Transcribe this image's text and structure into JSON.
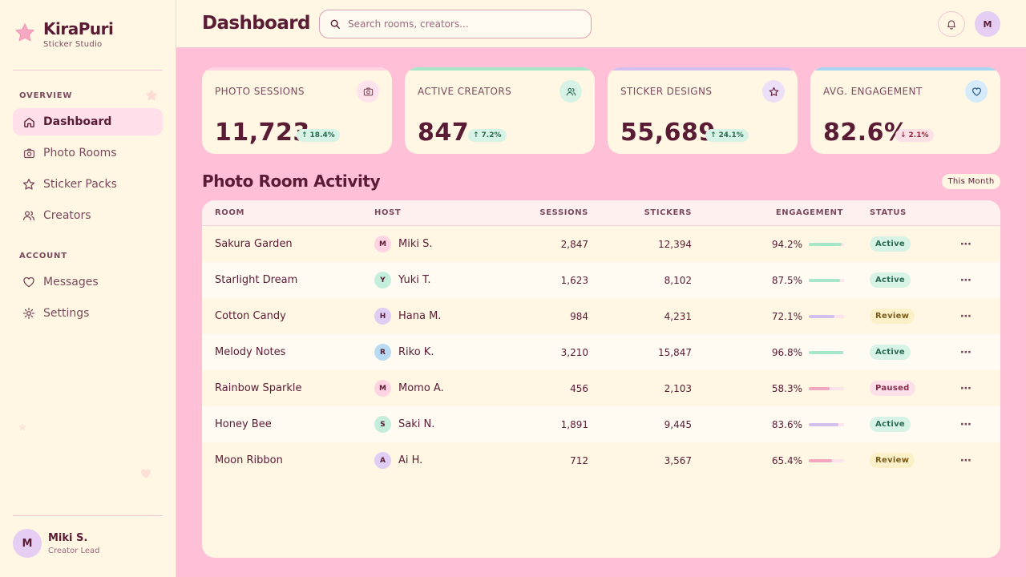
{
  "brand": {
    "name": "KiraPuri",
    "subtitle": "Sticker Studio"
  },
  "sidebar": {
    "sections": [
      "OVERVIEW",
      "ACCOUNT"
    ],
    "items": [
      {
        "label": "Dashboard",
        "icon": "home-icon",
        "active": true
      },
      {
        "label": "Photo Rooms",
        "icon": "camera-icon"
      },
      {
        "label": "Sticker Packs",
        "icon": "star-icon"
      },
      {
        "label": "Creators",
        "icon": "users-icon"
      },
      {
        "label": "Messages",
        "icon": "heart-icon"
      },
      {
        "label": "Settings",
        "icon": "gear-icon"
      }
    ],
    "profile": {
      "initial": "M",
      "name": "Miki S.",
      "role": "Creator Lead"
    }
  },
  "header": {
    "title": "Dashboard",
    "search_placeholder": "Search rooms, creators...",
    "avatar_initial": "M"
  },
  "stats": [
    {
      "label": "PHOTO SESSIONS",
      "value": "11,723",
      "delta": "18.4%",
      "direction": "up",
      "icon": "camera-icon",
      "accent": "#ffd3e2",
      "icon_bg": "#ffe3ec"
    },
    {
      "label": "ACTIVE CREATORS",
      "value": "847",
      "delta": "7.2%",
      "direction": "up",
      "icon": "users-icon",
      "accent": "#a8e6c9",
      "icon_bg": "#d7f3e6"
    },
    {
      "label": "STICKER DESIGNS",
      "value": "55,689",
      "delta": "24.1%",
      "direction": "up",
      "icon": "star-icon",
      "accent": "#d3c0ef",
      "icon_bg": "#ece0f8"
    },
    {
      "label": "AVG. ENGAGEMENT",
      "value": "82.6%",
      "delta": "2.1%",
      "direction": "down",
      "icon": "heart-icon",
      "accent": "#a9d4f2",
      "icon_bg": "#d6ebfa"
    }
  ],
  "activity": {
    "title": "Photo Room Activity",
    "filter": "This Month",
    "columns": [
      "ROOM",
      "HOST",
      "SESSIONS",
      "STICKERS",
      "ENGAGEMENT",
      "STATUS"
    ],
    "rows": [
      {
        "room": "Sakura Garden",
        "host_initial": "M",
        "host": "Miki S.",
        "host_color": "#ffd3e2",
        "sessions": "2,847",
        "stickers": "12,394",
        "engagement": "94.2%",
        "engagement_value": 0.942,
        "bar_color": "#a8e6c9",
        "status": "Active"
      },
      {
        "room": "Starlight Dream",
        "host_initial": "Y",
        "host": "Yuki T.",
        "host_color": "#c4eedb",
        "sessions": "1,623",
        "stickers": "8,102",
        "engagement": "87.5%",
        "engagement_value": 0.875,
        "bar_color": "#a8e6c9",
        "status": "Active"
      },
      {
        "room": "Cotton Candy",
        "host_initial": "H",
        "host": "Hana M.",
        "host_color": "#e0cdf3",
        "sessions": "984",
        "stickers": "4,231",
        "engagement": "72.1%",
        "engagement_value": 0.721,
        "bar_color": "#d3c0ef",
        "status": "Review"
      },
      {
        "room": "Melody Notes",
        "host_initial": "R",
        "host": "Riko K.",
        "host_color": "#b9daf3",
        "sessions": "3,210",
        "stickers": "15,847",
        "engagement": "96.8%",
        "engagement_value": 0.968,
        "bar_color": "#a8e6c9",
        "status": "Active"
      },
      {
        "room": "Rainbow Sparkle",
        "host_initial": "M",
        "host": "Momo A.",
        "host_color": "#ffd3e2",
        "sessions": "456",
        "stickers": "2,103",
        "engagement": "58.3%",
        "engagement_value": 0.583,
        "bar_color": "#f2a7c0",
        "status": "Paused"
      },
      {
        "room": "Honey Bee",
        "host_initial": "S",
        "host": "Saki N.",
        "host_color": "#c4eedb",
        "sessions": "1,891",
        "stickers": "9,445",
        "engagement": "83.6%",
        "engagement_value": 0.836,
        "bar_color": "#d3c0ef",
        "status": "Active"
      },
      {
        "room": "Moon Ribbon",
        "host_initial": "A",
        "host": "Ai H.",
        "host_color": "#e0cdf3",
        "sessions": "712",
        "stickers": "3,567",
        "engagement": "65.4%",
        "engagement_value": 0.654,
        "bar_color": "#f2a7c0",
        "status": "Review"
      }
    ],
    "row_action_icon": "more-icon"
  },
  "colors": {
    "page_bg": "#ffbfd6",
    "surface": "#fff6e3",
    "text": "#5a1b34",
    "status_active": "#d7f3e6",
    "status_review": "#fbf0c8",
    "status_paused": "#fde0ea"
  }
}
